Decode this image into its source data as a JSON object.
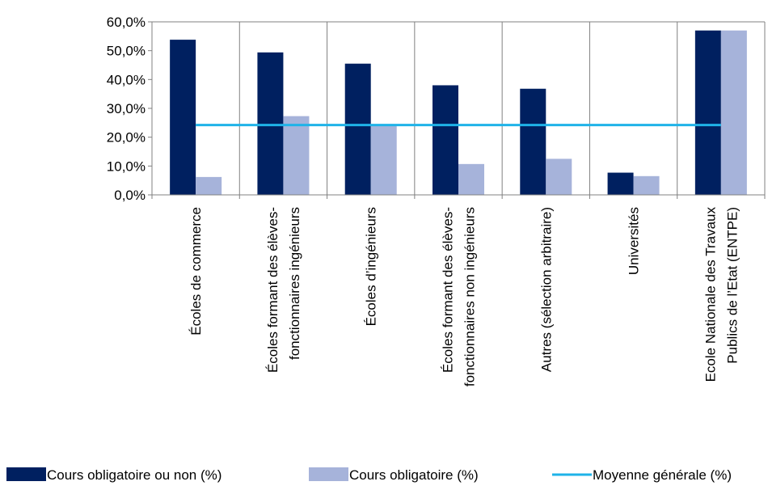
{
  "chart_data": {
    "type": "bar",
    "title": "",
    "xlabel": "",
    "ylabel": "",
    "ylim": [
      0,
      60
    ],
    "yticks": [
      0,
      10,
      20,
      30,
      40,
      50,
      60
    ],
    "ytick_labels": [
      "0,0%",
      "10,0%",
      "20,0%",
      "30,0%",
      "40,0%",
      "50,0%",
      "60,0%"
    ],
    "grid": true,
    "grid_orientation": "vertical",
    "legend_position": "bottom",
    "categories": [
      [
        "Écoles de commerce"
      ],
      [
        "Écoles formant des élèves-",
        "fonctionnaires ingénieurs"
      ],
      [
        "Écoles d’ingénieurs"
      ],
      [
        "Écoles formant des élèves-",
        "fonctionnaires non ingénieurs"
      ],
      [
        "Autres (sélection arbitraire)"
      ],
      [
        "Universités"
      ],
      [
        "Ecole Nationale des Travaux",
        "Publics de l’Etat (ENTPE)"
      ]
    ],
    "series": [
      {
        "name": "Cours obligatoire ou non (%)",
        "type": "bar",
        "color": "#002060",
        "values": [
          53.8,
          49.4,
          45.5,
          38.0,
          36.8,
          7.7,
          57.0
        ]
      },
      {
        "name": "Cours obligatoire (%)",
        "type": "bar",
        "color": "#a6b3da",
        "values": [
          6.2,
          27.3,
          24.2,
          10.7,
          12.5,
          6.5,
          57.0
        ]
      },
      {
        "name": "Moyenne générale (%)",
        "type": "line",
        "color": "#1fb3e8",
        "value": 24.2
      }
    ]
  }
}
